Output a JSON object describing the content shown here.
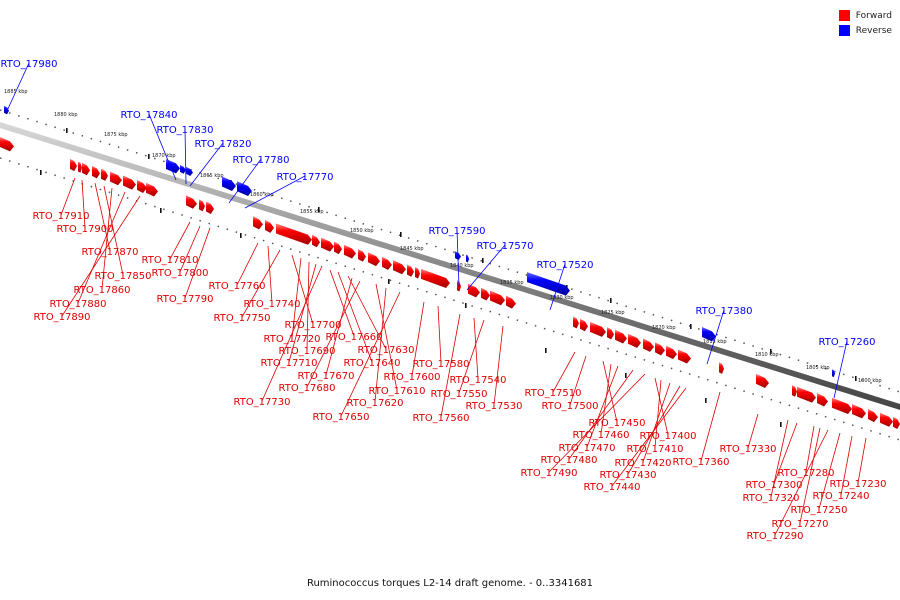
{
  "legend": [
    {
      "label": "Forward",
      "color": "#ff0000"
    },
    {
      "label": "Reverse",
      "color": "#0000ff"
    }
  ],
  "caption": "Ruminococcus torques L2-14 draft genome. - 0..3341681",
  "scale_labels": [
    "1885 kbp",
    "1880 kbp",
    "1875 kbp",
    "1870 kbp",
    "1865 kbp",
    "1860 kbp",
    "1855 kbp",
    "1850 kbp",
    "1845 kbp",
    "1840 kbp",
    "1835 kbp",
    "1830 kbp",
    "1825 kbp",
    "1820 kbp",
    "1815 kbp",
    "1810 kbp",
    "1805 kbp",
    "1800 kbp"
  ],
  "reverse_labels": [
    "RTO_17980",
    "RTO_17840",
    "RTO_17830",
    "RTO_17820",
    "RTO_17780",
    "RTO_17770",
    "RTO_17590",
    "RTO_17570",
    "RTO_17520",
    "RTO_17380",
    "RTO_17260"
  ],
  "forward_labels": [
    "RTO_17910",
    "RTO_17900",
    "RTO_17870",
    "RTO_17850",
    "RTO_17860",
    "RTO_17880",
    "RTO_17890",
    "RTO_17810",
    "RTO_17800",
    "RTO_17790",
    "RTO_17760",
    "RTO_17740",
    "RTO_17750",
    "RTO_17700",
    "RTO_17720",
    "RTO_17690",
    "RTO_17710",
    "RTO_17730",
    "RTO_17660",
    "RTO_17640",
    "RTO_17630",
    "RTO_17670",
    "RTO_17680",
    "RTO_17610",
    "RTO_17620",
    "RTO_17650",
    "RTO_17580",
    "RTO_17600",
    "RTO_17560",
    "RTO_17540",
    "RTO_17550",
    "RTO_17530",
    "RTO_17510",
    "RTO_17500",
    "RTO_17450",
    "RTO_17460",
    "RTO_17470",
    "RTO_17480",
    "RTO_17490",
    "RTO_17400",
    "RTO_17410",
    "RTO_17420",
    "RTO_17430",
    "RTO_17440",
    "RTO_17360",
    "RTO_17330",
    "RTO_17320",
    "RTO_17300",
    "RTO_17280",
    "RTO_17270",
    "RTO_17290",
    "RTO_17250",
    "RTO_17240",
    "RTO_17230"
  ]
}
